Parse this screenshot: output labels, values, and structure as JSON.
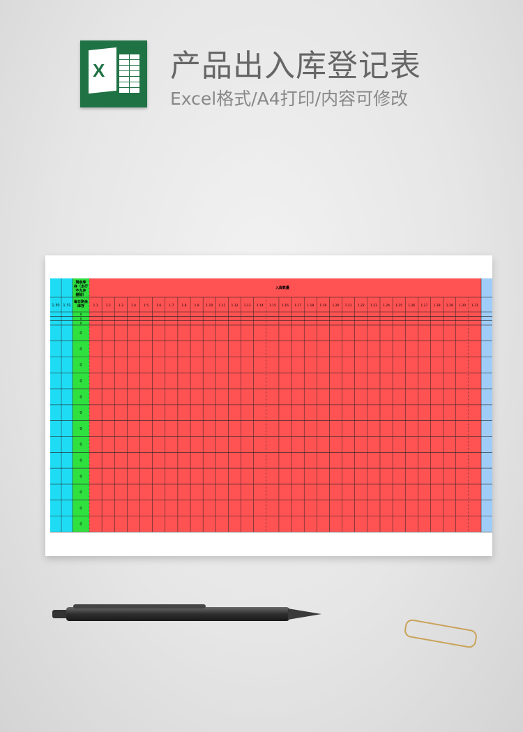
{
  "header": {
    "title": "产品出入库登记表",
    "subtitle": "Excel格式/A4打印/内容可修改",
    "logo_icon": "excel-icon",
    "logo_letter": "X"
  },
  "sheet": {
    "left_columns": [
      "1.30",
      "1.31"
    ],
    "green_header_top": "剩余库存（本行不允许删除）",
    "green_header_bottom": "每日剩余库存",
    "red_header": "入库数量",
    "day_columns": [
      "1.1",
      "1.2",
      "1.3",
      "1.4",
      "1.5",
      "1.6",
      "1.7",
      "1.8",
      "1.9",
      "1.10",
      "1.11",
      "1.12",
      "1.13",
      "1.14",
      "1.15",
      "1.16",
      "1.17",
      "1.18",
      "1.19",
      "1.20",
      "1.21",
      "1.22",
      "1.23",
      "1.24",
      "1.25",
      "1.26",
      "1.27",
      "1.28",
      "1.29",
      "1.30",
      "1.31"
    ],
    "remaining_values": [
      "0",
      "0",
      "0",
      "0",
      "0",
      "0",
      "0",
      "0",
      "0",
      "0",
      "0",
      "0",
      "0",
      "0",
      "0",
      "0"
    ],
    "colors": {
      "cyan": "#1fdcf5",
      "green": "#2fe03f",
      "red": "#ff5252",
      "blue": "#9fcdf7",
      "grid": "#222222"
    }
  }
}
